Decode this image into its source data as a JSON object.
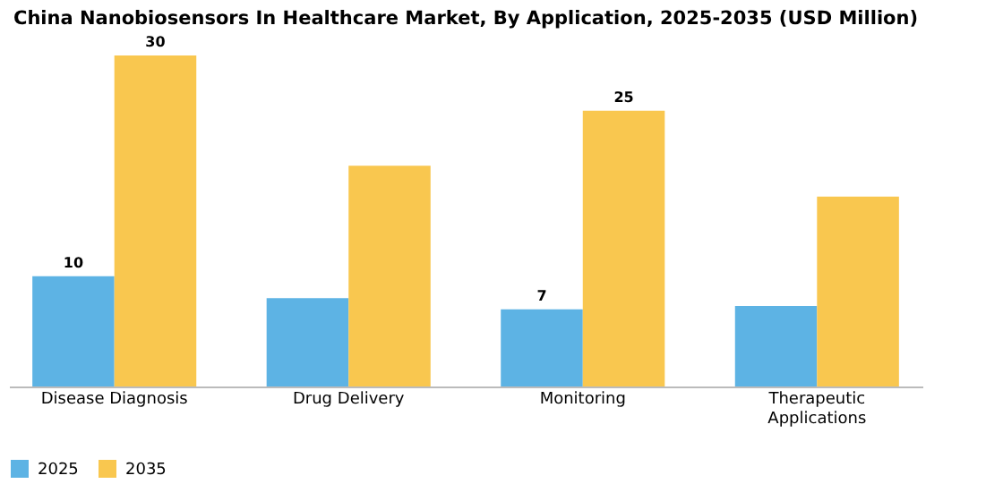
{
  "chart_data": {
    "type": "bar",
    "title": "China Nanobiosensors In Healthcare Market, By Application, 2025-2035 (USD Million)",
    "categories": [
      "Disease Diagnosis",
      "Drug Delivery",
      "Monitoring",
      "Therapeutic Applications"
    ],
    "series": [
      {
        "name": "2025",
        "color": "#5db3e4",
        "values": [
          10,
          8,
          7,
          7.3
        ],
        "value_labels": [
          "10",
          null,
          "7",
          null
        ]
      },
      {
        "name": "2035",
        "color": "#f9c74f",
        "values": [
          30,
          20,
          25,
          17.2
        ],
        "value_labels": [
          "30",
          null,
          "25",
          null
        ]
      }
    ],
    "legend": "bottom",
    "grid": false
  }
}
